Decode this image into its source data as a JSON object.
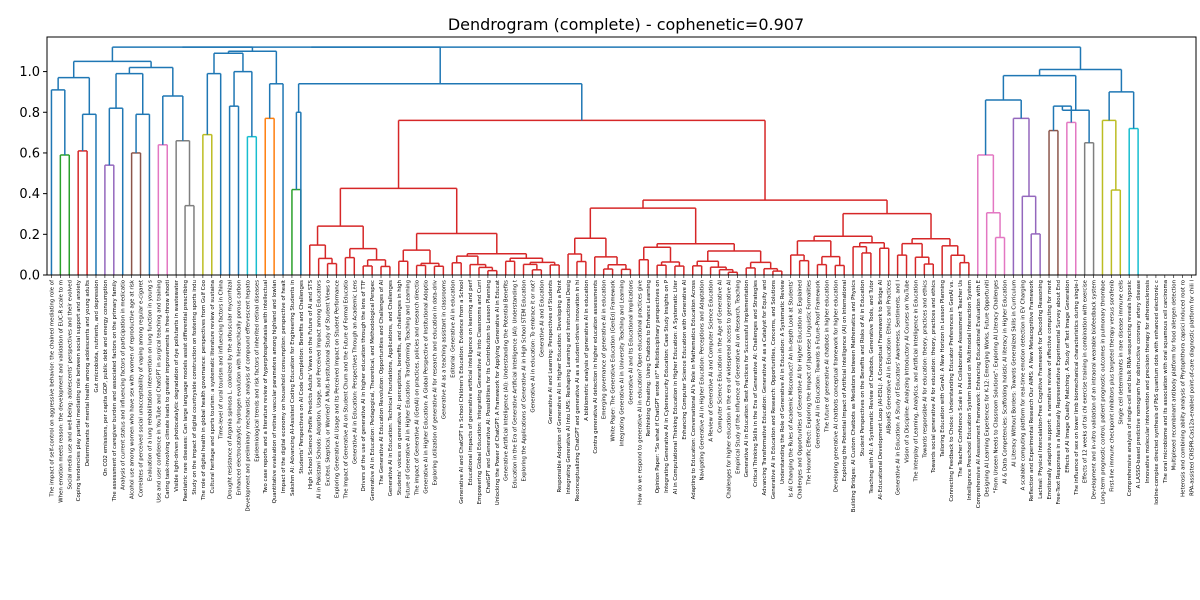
{
  "chart_data": {
    "type": "dendrogram",
    "title": "Dendrogram (complete) - cophenetic=0.907",
    "ylim": [
      0,
      1.17
    ],
    "yticks": [
      0.0,
      0.2,
      0.4,
      0.6,
      0.8,
      1.0
    ],
    "ytick_labels": [
      "0.0",
      "0.2",
      "0.4",
      "0.6",
      "0.8",
      "1.0"
    ],
    "grid": false,
    "colors": {
      "C0": "#1f77b4",
      "C1": "#ff7f0e",
      "C2": "#2ca02c",
      "C3": "#d62728",
      "C4": "#9467bd",
      "C5": "#8c564b",
      "C6": "#e377c2",
      "C7": "#7f7f7f",
      "C8": "#bcbd22",
      "C9": "#17becf"
    },
    "leaves": [
      "The impact of self-control on aggressive behavior: the chained mediating role of",
      "When emotion meets reason: the development and validation of EUC-R scale to m",
      "Social media use and well-being: adolescents' perspectives and their evolved",
      "Coping tendencies play partial mediating role between social support and anxiety",
      "Determinants of mental health among adolescents and young adults",
      "Gut microbiota, nutrients, and depression",
      "On CO2 emissions, per capita GDP, public debt and energy consumption",
      "The assessment of caregiver burden and associated factors on the primary family",
      "Analysis of current status and influencing factors of participation in medicatio",
      "Alcohol use among women who have sex with women of reproductive age at risk",
      "Correlates of perceived social unacceptability of vaping among regular e-cigaret",
      "Evaluation of a lung rehabilitation intervention on lung function in young s",
      "Use and user confidence in YouTube and ChatGPT in surgical teaching and training",
      "Caring task-involving climate leads to greater improvements in free-throw shooti",
      "Visible light-driven photocatalytic degradation of dye pollutants in wastewater",
      "Paediatric rare diseases: Can large language models assist differential prescribing",
      "Study on the impact of digital countryside construction on fostering sports indu",
      "The role of digital health in global health governance: perspectives from Gulf Coo",
      "Cultural heritage and sports tourism: a systematic literature review of sustaina",
      "Time-level of rural tourism and influencing factors in China",
      "Drought resistance of Argania spinosa L. colonized by the arbuscular mycorrhizal",
      "Enhanced electrocatalytic hydrogen evolution with hierarchically porous carbon",
      "Development and preliminary mechanistic analysis of compound effervescent hepato",
      "Epidemiological trends and risk factors of inherited retinal diseases",
      "Two case reports and a literature review of hyperphosphatasia with intellectual",
      "Quantitative evaluation of retinal vascular parameters among highland and lowlan",
      "Impact of the digital economy on household consumption: perspective of healt",
      "Sakshm AI: Advancing AI-Assisted Coding Education for Engineering Students in",
      "Students' Perspectives on AI Code Completion: Benefits and Challenges",
      "High School Science Profile Predicts Adults' Views on the Future of AI and STS",
      "AI in Pakistani Schools: Adoption, Usage, and Perceived Impact among Educators",
      "Excited, Skeptical, or Worried? A Multi-Institutional Study of Student Views o",
      "Exploring Generative AI Usage and Its Perceived Impact on Student Performance",
      "The Impact of Generative AI on Student Churn and the Future of Formal Educatio",
      "Generative AI in Education: Perspectives Through an Academic Lens",
      "Drivers of the use of generative AI in higher education through the lens of TTF",
      "Generative AI in Education: Pedagogical, Theoretical, and Methodological Perspec",
      "The Generative AI Education Revolution: Opportunities and Challenges of AI",
      "Generative AI in Education: Technical Foundations, Applications, and Challenges",
      "Students' voices on generative AI: perceptions, benefits, and challenges in high",
      "Future of Generative AI in Higher Education: Transforming Teaching and Learning",
      "The impact of Generative AI (GenAI) on practices, policies and research directio",
      "Generative AI in Higher Education: A Global Perspective of Institutional Adoptio",
      "Exploring utilization of generative AI for research and education in data-driv",
      "Generative AI as a teaching assistant in classrooms",
      "Editorial: Generative AI in education",
      "Generative AI and ChatGPT in School Children's Education: Evidence from a School",
      "Educational impacts of generative artificial intelligence on learning and perf",
      "Empowering Global Education: Integrating Generative AI into Classrooms and Curri",
      "ChatGPT and Generative AI: Possibilities for Its Contribution to Lesson Planning",
      "Unlocking the Power of ChatGPT: A Framework for Applying Generative AI in Educat",
      "Generative Artificial Intelligence (AI): Understanding the Potential Benefits",
      "Education in the Era of Generative Artificial Intelligence (AI): Understanding t",
      "Exploring the Applications of Generative AI in High School STEM Education",
      "Generative AI in education: To embrace it or not?",
      "Generative AI and Education",
      "Generative AI and Learning: Perspectives of Students",
      "Responsible Adoption of Generative AI in Higher Education: Developing a Point",
      "Integrating Generative AI Into LMS: Reshaping Learning and Instructional Desig",
      "Reconceptualizing ChatGPT and generative AI as a student-driven innovation in hi",
      "A bibliometric analysis of generative AI in education",
      "Contra generative AI detection in higher education assessments",
      "Emerging governance of generative AI in education",
      "White Paper: The Generative Education (GenEd) Framework",
      "Integrating Generative AI in University Teaching and Learning",
      "Generative AI and Its Educational Implications",
      "How do we respond to generative AI in education? Open educational practices give",
      "Rethinking Cheating: Using Chatbots to Enhance Learning",
      "Opinion Paper: \"So what if ChatGPT wrote it?\" Multidisciplinary perspectives on",
      "Integrating Generative AI in Cybersecurity Education: Case Study Insights on P",
      "AI in Computational Thinking Education in Higher Education: A Systematic Liter",
      "Enhancing Computer Science Education with Generative AI",
      "Adapting to Education: Conversational AI's Role in Mathematics Education Across",
      "Navigating Generative AI in Higher Education: Perceptions and Adaptation",
      "A Review of Generative AI and Computer Science Education",
      "Computer Science Education in the Age of Generative AI",
      "Challenges for higher education in the era of widespread access to generative AI",
      "Empirical Study of the Influence of Generative AI on Research, Teaching",
      "Generative AI in Education: Best Practices for Successful Implementation",
      "Critical Thinking Skills in the Era of Generative AI: Challenges and Strategies",
      "Advancing Transformative Education: Generative AI as a Catalyst for Equity and",
      "Generative AI in Education and Research: Opportunities, Concerns, and Solutions",
      "Understanding the Role of Generative AI in Education: A Systematic Review",
      "Is AI Changing the Rules of Academic Misconduct? An In-depth Look at Students'",
      "Challenges and Opportunities of Generative AI for Higher Education as Explained",
      "The Honorific Effect: Exploring the Impact of Japanese Linguistic Formalities",
      "Generative AI in Education: Towards a Future-Proof Framework",
      "The future of generative AI chatbots in higher education",
      "Developing generative AI chatbots conceptual framework for higher education",
      "Exploring the Potential Impact of Artificial Intelligence (AI) on International",
      "Building Bridges: AI Custom Chatbots as Mediators between Mathematics and Physics",
      "Student Perspectives on the Benefits and Risks of AI in Education",
      "Teaching with AI: A Systematic Review of Chatbots, Generative Tools, and Tutor",
      "AI-Educational Development Loop (AI-EDL): A Conceptual Framework to Bridge AI",
      "AIBooKS Generative AI in Education: Ethics and Practices",
      "Generative AI in Education: A Study of Educators' Awareness, Sentiments, and I",
      "Vision of a Discipline: Analyzing Introductory AI Courses on YouTube",
      "The Interplay of Learning, Analytics, and Artificial Intelligence in Education",
      "Towards responsible AI for education: theory, practices and ethics",
      "Towards social generative AI for education: theory, practices and ethics",
      "Tailoring Education with GenAI: A New Horizon in Lesson Planning",
      "Connecting Feedback to Choice: Understanding Educator Preferences in GenAI vs.",
      "The Teacher Confidence Scale in AI Collaborative Assessment Teacher Us",
      "Intelligence Preschool Education System based on Multimodal Interaction System",
      "Comprehensive AI Assessment Framework: Enhancing Educational Evaluation with E",
      "Designing AI Learning Experiences for K-12: Emerging Works, Future Opportuniti",
      "\"From Unseen Needs to Classroom Solutions\": Exploring AI Literacy Challenges",
      "AI & Data Competencies: Scaffolding holistic AI literacy in Higher Education",
      "AI Literacy Without Borders: Towards Generalized Skills in Curriculum",
      "A scalable computing platform for real-time emotion detection in EV Charging",
      "Reflection and Experimental Research Our AIMS: A New Metacognitive Framework",
      "Lacteal: Physical Intercalation-Free Cognitive Framework for Decoding Reasoning",
      "Emotionally adaptive support: a narrative review of affective computing for ment",
      "Free-Text Responses in a Nationally Representative Experimental Survey about End",
      "Effects of AI Image Quality Matching: A Study of Text Image Generation",
      "The influence of sex on lower limb biomechanical characteristics during single-l",
      "Effects of 12 weeks of tai chi exercise training in combination with exercise",
      "Development and in-vitro validation of an intraoral wearable biofeedback system",
      "Long-term prognostic control, patient prognostic outcomes in pulmonary thromboe",
      "First-line immune checkpoint inhibitors plus targeted therapy versus sorafenib",
      "Single cell determinants in rare disease immune cells",
      "Comprehensive analysis of single-cell and bulk RNA-sequencing reveals hypoxic",
      "A LASSO-based predictive nomogram for obstructive coronary artery disease",
      "Innovative molecular intervention and precision therapy for atherosclerosis",
      "Iodine-complex directed synthesis of PbS quantum dots with enhanced electronic c",
      "The oral microbiome and its association with oral squamous cell carcinoma",
      "Multiplexed recombinant antibody platform for food allergen detection",
      "Heterosis and combining ability analysis of Phytophthora capsici induced root ro",
      "RPA-assisted CRISPR-Cas12a-enabled point-of-care diagnostic platform for chili l"
    ],
    "links": [
      {
        "c": "C1",
        "l": 0,
        "r": 0,
        "h": 0.73
      },
      {
        "c": "C2",
        "l": 1,
        "r": 2,
        "h": 0.59
      },
      {
        "c": "C0",
        "l": 0,
        "r": [
          1,
          2
        ],
        "h": 0.91
      },
      {
        "c": "C3",
        "l": 3,
        "r": 4,
        "h": 0.61
      },
      {
        "c": "C0",
        "l": [
          1.5,
          3.5
        ],
        "r": [
          3.5
        ],
        "h": 0.79
      },
      {
        "c": "C4",
        "l": 6,
        "r": 6,
        "h": 0.54
      },
      {
        "c": "C5",
        "l": 8,
        "r": 8,
        "h": 0.6
      },
      {
        "c": "C6",
        "l": 10,
        "r": 10,
        "h": 0.64
      },
      {
        "c": "C7",
        "l": 12,
        "r": 12,
        "h": 0.39
      },
      {
        "c": "C7",
        "l": 13,
        "r": 14,
        "h": 0.58
      }
    ],
    "link_scale_note": ""
  }
}
